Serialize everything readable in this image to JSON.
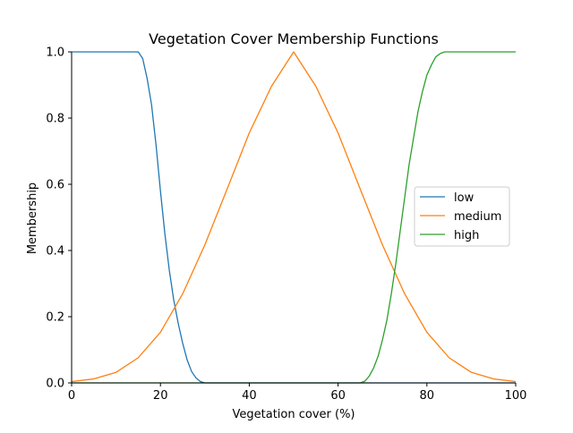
{
  "chart_data": {
    "type": "line",
    "title": "Vegetation Cover Membership Functions",
    "xlabel": "Vegetation cover (%)",
    "ylabel": "Membership",
    "xlim": [
      0,
      100
    ],
    "ylim": [
      0,
      1
    ],
    "x_ticks": [
      0,
      20,
      40,
      60,
      80,
      100
    ],
    "y_ticks": [
      0.0,
      0.2,
      0.4,
      0.6,
      0.8,
      1.0
    ],
    "x_tick_labels": [
      "0",
      "20",
      "40",
      "60",
      "80",
      "100"
    ],
    "y_tick_labels": [
      "0.0",
      "0.2",
      "0.4",
      "0.6",
      "0.8",
      "1.0"
    ],
    "grid": false,
    "legend_position": "center-right",
    "series": [
      {
        "name": "low",
        "color": "#1f77b4",
        "x": [
          0,
          15,
          16,
          17,
          18,
          19,
          20,
          21,
          22,
          23,
          24,
          25,
          26,
          27,
          28,
          29,
          30,
          100
        ],
        "y": [
          1.0,
          1.0,
          0.98,
          0.92,
          0.84,
          0.72,
          0.58,
          0.45,
          0.34,
          0.25,
          0.18,
          0.12,
          0.07,
          0.035,
          0.015,
          0.004,
          0.0,
          0.0
        ]
      },
      {
        "name": "medium",
        "color": "#ff7f0e",
        "x": [
          0,
          5,
          10,
          15,
          20,
          25,
          30,
          35,
          40,
          45,
          50,
          55,
          60,
          65,
          70,
          75,
          80,
          85,
          90,
          95,
          100
        ],
        "y": [
          0.004,
          0.012,
          0.032,
          0.076,
          0.153,
          0.269,
          0.417,
          0.585,
          0.755,
          0.896,
          1.0,
          0.896,
          0.755,
          0.585,
          0.417,
          0.269,
          0.153,
          0.076,
          0.032,
          0.012,
          0.004
        ]
      },
      {
        "name": "high",
        "color": "#2ca02c",
        "x": [
          0,
          65,
          66,
          67,
          68,
          69,
          70,
          71,
          72,
          73,
          74,
          75,
          76,
          77,
          78,
          79,
          80,
          81,
          82,
          83,
          84,
          85,
          100
        ],
        "y": [
          0.0,
          0.0,
          0.005,
          0.02,
          0.045,
          0.08,
          0.13,
          0.19,
          0.27,
          0.36,
          0.46,
          0.56,
          0.66,
          0.74,
          0.82,
          0.88,
          0.93,
          0.96,
          0.985,
          0.995,
          1.0,
          1.0,
          1.0
        ]
      }
    ]
  }
}
